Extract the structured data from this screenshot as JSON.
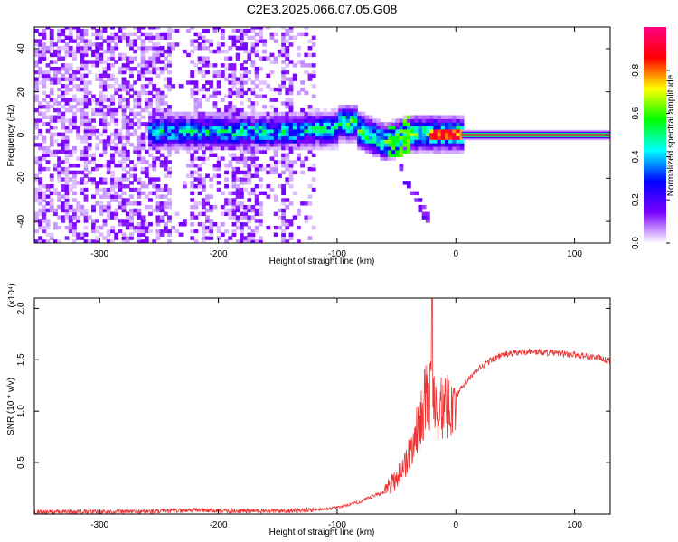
{
  "title": "C2E3.2025.066.07.05.G08",
  "chart_data": [
    {
      "type": "heatmap",
      "xlabel": "Height of straight line (km)",
      "ylabel": "Frequency (Hz)",
      "xlim": [
        -355,
        130
      ],
      "ylim": [
        -50,
        50
      ],
      "x_ticks": [
        -300,
        -200,
        -100,
        0,
        100
      ],
      "y_ticks": [
        -40,
        -20,
        0,
        20,
        40
      ],
      "x_tick_labels": [
        "-300",
        "-200",
        "-100",
        "0",
        "100"
      ],
      "y_tick_labels": [
        "-40",
        "-20",
        "0",
        "20",
        "40"
      ],
      "colorbar": {
        "label": "Normalized spectral amplitude",
        "range": [
          0,
          1
        ],
        "ticks": [
          0.0,
          0.2,
          0.4,
          0.6,
          0.8
        ],
        "tick_labels": [
          "0.0",
          "0.2",
          "0.4",
          "0.6",
          "0.8"
        ],
        "colormap": [
          "#ffffff",
          "#7a00ff",
          "#0000ff",
          "#00ffff",
          "#00ff00",
          "#ffff00",
          "#ff0000",
          "#ff0080"
        ]
      },
      "features": {
        "steady_tone_from_km": 5,
        "steady_tone_freq_hz": 0,
        "steady_tone_amplitude": 0.9,
        "noise_region_km": [
          -355,
          -120
        ],
        "signal_band_km": [
          -260,
          5
        ],
        "descending_branch": {
          "from_km": -50,
          "to_km": -25,
          "freq_from_hz": -15,
          "freq_to_hz": -40
        }
      }
    },
    {
      "type": "line",
      "xlabel": "Height of straight line (km)",
      "ylabel": "SNR (10 * v/v)",
      "y_multiplier_label": "(x10⁴)",
      "xlim": [
        -355,
        130
      ],
      "ylim": [
        0,
        2.1
      ],
      "x_ticks": [
        -300,
        -200,
        -100,
        0,
        100
      ],
      "y_ticks": [
        0.5,
        1.0,
        1.5,
        2.0
      ],
      "x_tick_labels": [
        "-300",
        "-200",
        "-100",
        "0",
        "100"
      ],
      "y_tick_labels": [
        "0.5",
        "1.0",
        "1.5",
        "2.0"
      ],
      "series": [
        {
          "color": "#ee3333",
          "x": [
            -355,
            -300,
            -250,
            -220,
            -200,
            -150,
            -120,
            -100,
            -80,
            -60,
            -50,
            -40,
            -30,
            -25,
            -20,
            -15,
            -10,
            -5,
            0,
            10,
            20,
            30,
            40,
            60,
            80,
            100,
            120,
            130
          ],
          "y": [
            0.02,
            0.02,
            0.025,
            0.04,
            0.03,
            0.03,
            0.04,
            0.06,
            0.12,
            0.22,
            0.35,
            0.55,
            0.9,
            1.15,
            1.2,
            1.05,
            1.0,
            1.05,
            1.15,
            1.3,
            1.42,
            1.5,
            1.55,
            1.58,
            1.57,
            1.55,
            1.52,
            1.48
          ]
        }
      ],
      "noise_amplitude": 0.09,
      "spike": {
        "x": -20,
        "y": 2.1
      }
    }
  ]
}
